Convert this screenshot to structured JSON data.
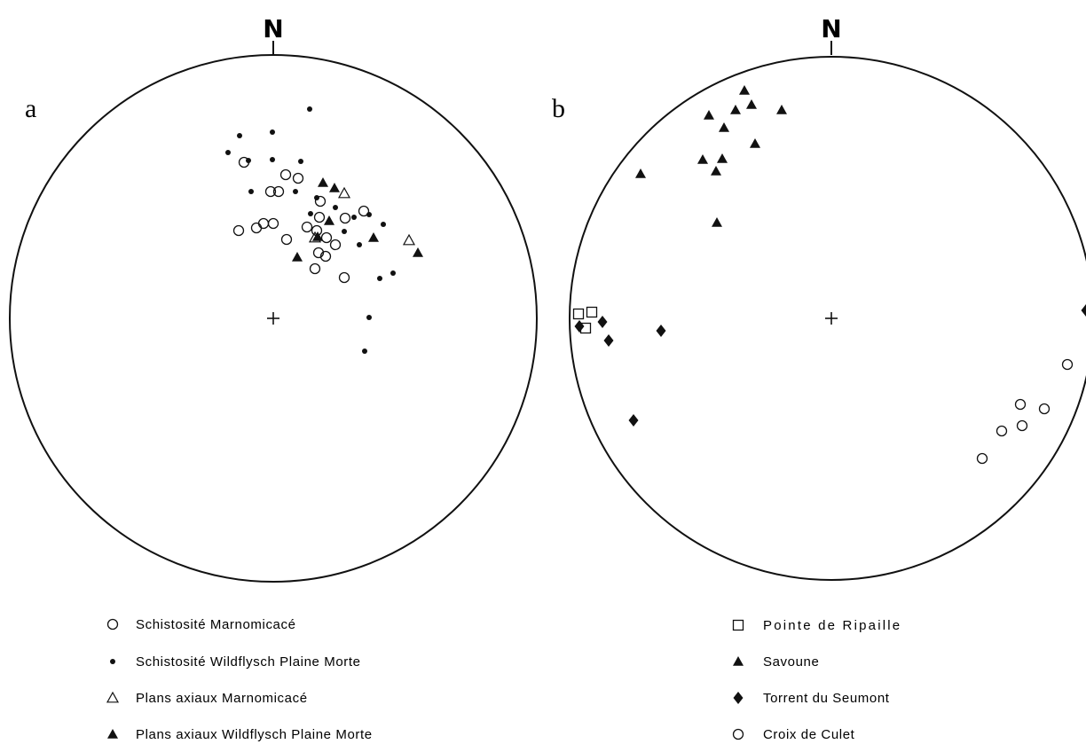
{
  "panels": [
    {
      "letter": "a",
      "north_label": "N",
      "points": {
        "open_circle": [
          [
            275,
            183
          ],
          [
            322,
            197
          ],
          [
            336,
            201
          ],
          [
            305,
            216
          ],
          [
            314,
            216
          ],
          [
            361,
            227
          ],
          [
            297,
            252
          ],
          [
            308,
            252
          ],
          [
            289,
            257
          ],
          [
            269,
            260
          ],
          [
            360,
            245
          ],
          [
            389,
            246
          ],
          [
            410,
            238
          ],
          [
            346,
            256
          ],
          [
            357,
            260
          ],
          [
            368,
            268
          ],
          [
            378,
            276
          ],
          [
            323,
            270
          ],
          [
            359,
            285
          ],
          [
            367,
            289
          ],
          [
            355,
            303
          ],
          [
            388,
            313
          ]
        ],
        "dot": [
          [
            349,
            123
          ],
          [
            270,
            153
          ],
          [
            307,
            149
          ],
          [
            257,
            172
          ],
          [
            280,
            181
          ],
          [
            307,
            180
          ],
          [
            339,
            182
          ],
          [
            283,
            216
          ],
          [
            333,
            216
          ],
          [
            357,
            223
          ],
          [
            378,
            234
          ],
          [
            350,
            241
          ],
          [
            399,
            245
          ],
          [
            416,
            242
          ],
          [
            388,
            261
          ],
          [
            432,
            253
          ],
          [
            405,
            276
          ],
          [
            443,
            308
          ],
          [
            428,
            314
          ],
          [
            416,
            358
          ],
          [
            411,
            396
          ]
        ],
        "open_triangle": [
          [
            388,
            218
          ],
          [
            355,
            268
          ],
          [
            461,
            271
          ]
        ],
        "filled_triangle": [
          [
            364,
            206
          ],
          [
            377,
            212
          ],
          [
            371,
            249
          ],
          [
            358,
            267
          ],
          [
            421,
            268
          ],
          [
            471,
            285
          ],
          [
            335,
            290
          ]
        ]
      }
    },
    {
      "letter": "b",
      "north_label": "N",
      "points": {
        "open_square": [
          [
            652,
            354
          ],
          [
            667,
            352
          ],
          [
            660,
            370
          ]
        ],
        "filled_triangle": [
          [
            839,
            102
          ],
          [
            799,
            130
          ],
          [
            829,
            124
          ],
          [
            847,
            118
          ],
          [
            881,
            124
          ],
          [
            816,
            144
          ],
          [
            851,
            162
          ],
          [
            792,
            180
          ],
          [
            814,
            179
          ],
          [
            807,
            193
          ],
          [
            722,
            196
          ],
          [
            808,
            251
          ]
        ],
        "filled_diamond": [
          [
            653,
            368
          ],
          [
            679,
            363
          ],
          [
            686,
            384
          ],
          [
            745,
            373
          ],
          [
            714,
            474
          ],
          [
            1224,
            350
          ]
        ],
        "open_circle": [
          [
            1203,
            411
          ],
          [
            1150,
            456
          ],
          [
            1177,
            461
          ],
          [
            1152,
            480
          ],
          [
            1129,
            486
          ],
          [
            1107,
            517
          ]
        ]
      }
    }
  ],
  "legend_left": [
    {
      "symbol": "open_circle",
      "label": "Schistosité Marnomicacé"
    },
    {
      "symbol": "dot",
      "label": "Schistosité Wildflysch Plaine Morte"
    },
    {
      "symbol": "open_triangle",
      "label": "Plans axiaux Marnomicacé"
    },
    {
      "symbol": "filled_triangle",
      "label": "Plans axiaux Wildflysch Plaine Morte"
    }
  ],
  "legend_right": [
    {
      "symbol": "open_square",
      "label": "Pointe de Ripaille"
    },
    {
      "symbol": "filled_triangle",
      "label": "Savoune"
    },
    {
      "symbol": "filled_diamond",
      "label": "Torrent du Seumont"
    },
    {
      "symbol": "open_circle",
      "label": "Croix de Culet"
    }
  ]
}
